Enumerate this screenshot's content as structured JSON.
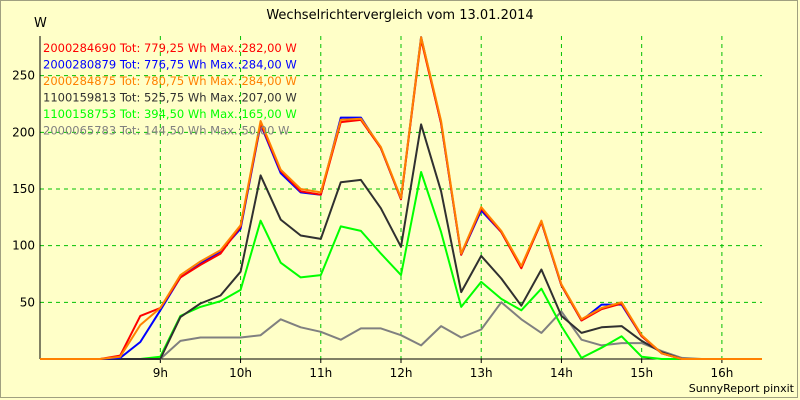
{
  "chart_data": {
    "type": "line",
    "title": "Wechselrichtervergleich vom 13.01.2014",
    "ylabel": "W",
    "footer": "SunnyReport pinxit",
    "ylim": [
      0,
      285
    ],
    "xlim": [
      7.5,
      16.5
    ],
    "yticks": [
      50,
      100,
      150,
      200,
      250
    ],
    "xticks": [
      {
        "v": 9,
        "label": "9h"
      },
      {
        "v": 10,
        "label": "10h"
      },
      {
        "v": 11,
        "label": "11h"
      },
      {
        "v": 12,
        "label": "12h"
      },
      {
        "v": 13,
        "label": "13h"
      },
      {
        "v": 14,
        "label": "14h"
      },
      {
        "v": 15,
        "label": "15h"
      },
      {
        "v": 16,
        "label": "16h"
      }
    ],
    "grid": true,
    "legend_position": "top-left",
    "x": [
      7.5,
      7.75,
      8.0,
      8.25,
      8.5,
      8.75,
      9.0,
      9.25,
      9.5,
      9.75,
      10.0,
      10.25,
      10.5,
      10.75,
      11.0,
      11.25,
      11.5,
      11.75,
      12.0,
      12.25,
      12.5,
      12.75,
      13.0,
      13.25,
      13.5,
      13.75,
      14.0,
      14.25,
      14.5,
      14.75,
      15.0,
      15.25,
      15.5,
      15.75,
      16.0,
      16.25,
      16.5
    ],
    "series": [
      {
        "name": "2000284690",
        "label": "2000284690 Tot: 779,25 Wh Max.:282,00 W",
        "color": "#ff0000",
        "values": [
          0,
          0,
          0,
          0,
          3,
          38,
          45,
          72,
          83,
          93,
          117,
          208,
          166,
          148,
          145,
          209,
          211,
          186,
          141,
          282,
          208,
          92,
          133,
          112,
          80,
          121,
          65,
          34,
          44,
          49,
          20,
          5,
          0,
          0,
          0,
          0,
          0
        ]
      },
      {
        "name": "2000280879",
        "label": "2000280879 Tot: 776,75 Wh Max.:284,00 W",
        "color": "#0000ff",
        "values": [
          0,
          0,
          0,
          0,
          1,
          15,
          43,
          72,
          84,
          95,
          115,
          207,
          164,
          147,
          145,
          213,
          213,
          186,
          141,
          284,
          208,
          92,
          131,
          112,
          81,
          121,
          65,
          34,
          48,
          48,
          20,
          5,
          0,
          0,
          0,
          0,
          0
        ]
      },
      {
        "name": "2000284875",
        "label": "2000284875 Tot: 780,75 Wh Max.:284,00 W",
        "color": "#ff8000",
        "values": [
          0,
          0,
          0,
          0,
          2,
          30,
          45,
          74,
          86,
          96,
          118,
          210,
          167,
          150,
          147,
          211,
          212,
          187,
          142,
          284,
          210,
          93,
          134,
          113,
          82,
          122,
          66,
          35,
          45,
          50,
          21,
          5,
          0,
          0,
          0,
          0,
          0
        ]
      },
      {
        "name": "1100159813",
        "label": "1100159813 Tot: 525,75 Wh Max.:207,00 W",
        "color": "#303030",
        "values": [
          0,
          0,
          0,
          0,
          0,
          0,
          0,
          37,
          49,
          56,
          77,
          162,
          123,
          109,
          106,
          156,
          158,
          133,
          99,
          207,
          148,
          59,
          91,
          71,
          47,
          79,
          38,
          23,
          28,
          29,
          16,
          6,
          0,
          0,
          0,
          0,
          0
        ]
      },
      {
        "name": "1100158753",
        "label": "1100158753 Tot: 394,50 Wh Max.:165,00 W",
        "color": "#00ff00",
        "values": [
          0,
          0,
          0,
          0,
          0,
          0,
          2,
          38,
          46,
          51,
          61,
          122,
          85,
          72,
          74,
          117,
          113,
          93,
          74,
          165,
          112,
          46,
          68,
          53,
          43,
          62,
          29,
          1,
          10,
          20,
          2,
          0,
          0,
          0,
          0,
          0,
          0
        ]
      },
      {
        "name": "2000065783",
        "label": "2000065783 Tot: 144,50 Wh Max.:50,00 W",
        "color": "#808080",
        "values": [
          0,
          0,
          0,
          0,
          0,
          0,
          0,
          16,
          19,
          19,
          19,
          21,
          35,
          28,
          24,
          17,
          27,
          27,
          21,
          12,
          29,
          19,
          26,
          50,
          35,
          23,
          42,
          17,
          12,
          14,
          14,
          7,
          1,
          0,
          0,
          0,
          0
        ]
      }
    ]
  }
}
